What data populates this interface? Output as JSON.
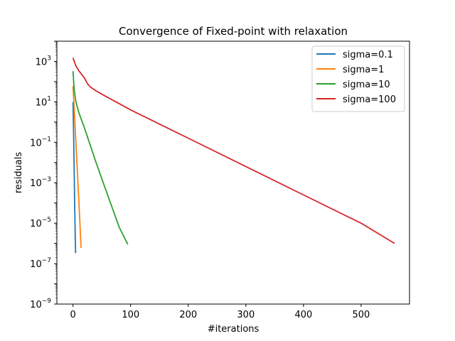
{
  "chart_data": {
    "type": "line",
    "title": "Convergence of Fixed-point with relaxation",
    "xlabel": "#iterations",
    "ylabel": "residuals",
    "yscale": "log",
    "xlim": [
      -28,
      584
    ],
    "ylim": [
      1e-09,
      10000.0
    ],
    "grid": false,
    "legend_position": "top-right",
    "xticks": [
      {
        "value": 0,
        "label": "0"
      },
      {
        "value": 100,
        "label": "100"
      },
      {
        "value": 200,
        "label": "200"
      },
      {
        "value": 300,
        "label": "300"
      },
      {
        "value": 400,
        "label": "400"
      },
      {
        "value": 500,
        "label": "500"
      }
    ],
    "yticks": [
      {
        "value": 1e-09,
        "base": "10",
        "exp": "−9"
      },
      {
        "value": 1e-07,
        "base": "10",
        "exp": "−7"
      },
      {
        "value": 1e-05,
        "base": "10",
        "exp": "−5"
      },
      {
        "value": 0.001,
        "base": "10",
        "exp": "−3"
      },
      {
        "value": 0.1,
        "base": "10",
        "exp": "−1"
      },
      {
        "value": 10.0,
        "base": "10",
        "exp": "1"
      },
      {
        "value": 1000.0,
        "base": "10",
        "exp": "3"
      }
    ],
    "series": [
      {
        "name": "sigma=0.1",
        "color": "#1f77b4",
        "points": [
          [
            0,
            10
          ],
          [
            1,
            0.3
          ],
          [
            2,
            0.005
          ],
          [
            3,
            5e-05
          ],
          [
            4,
            1.5e-06
          ],
          [
            4.5,
            3.3e-07
          ]
        ]
      },
      {
        "name": "sigma=1",
        "color": "#ff7f0e",
        "points": [
          [
            0,
            60
          ],
          [
            2,
            5
          ],
          [
            5,
            0.1
          ],
          [
            8,
            0.002
          ],
          [
            11,
            4e-05
          ],
          [
            14,
            6e-07
          ]
        ]
      },
      {
        "name": "sigma=10",
        "color": "#2ca02c",
        "points": [
          [
            0,
            330
          ],
          [
            2,
            40
          ],
          [
            5,
            10
          ],
          [
            10,
            3
          ],
          [
            20,
            0.5
          ],
          [
            40,
            0.01
          ],
          [
            60,
            0.00025
          ],
          [
            80,
            6.5e-06
          ],
          [
            95,
            9e-07
          ]
        ]
      },
      {
        "name": "sigma=100",
        "color": "#d62728",
        "points": [
          [
            0,
            1500
          ],
          [
            5,
            600
          ],
          [
            10,
            350
          ],
          [
            20,
            150
          ],
          [
            25,
            80
          ],
          [
            30,
            55
          ],
          [
            40,
            35
          ],
          [
            50,
            24
          ],
          [
            100,
            4
          ],
          [
            200,
            0.16
          ],
          [
            300,
            0.0063
          ],
          [
            400,
            0.00025
          ],
          [
            500,
            1e-05
          ],
          [
            558,
            1e-06
          ]
        ]
      }
    ]
  }
}
